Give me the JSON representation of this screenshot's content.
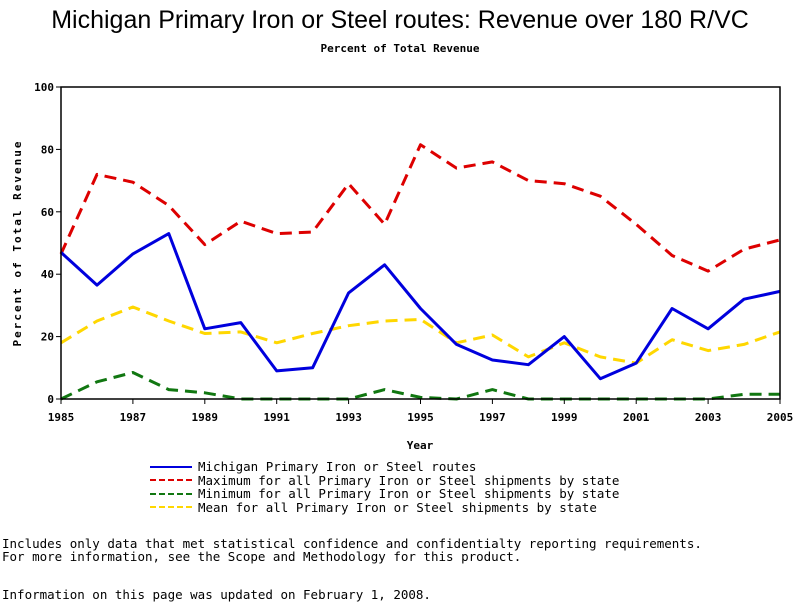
{
  "chart_data": {
    "type": "line",
    "title": "Michigan Primary Iron or Steel routes: Revenue over 180 R/VC",
    "subtitle": "Percent of Total Revenue",
    "xlabel": "Year",
    "ylabel": "Percent of Total Revenue",
    "xlim": [
      1985,
      2005
    ],
    "ylim": [
      0,
      100
    ],
    "x_ticks": [
      "1985",
      "1987",
      "1989",
      "1991",
      "1993",
      "1995",
      "1997",
      "1999",
      "2001",
      "2003",
      "2005"
    ],
    "y_ticks": [
      "0",
      "20",
      "40",
      "60",
      "80",
      "100"
    ],
    "grid": false,
    "legend_position": "bottom",
    "x": [
      1985,
      1986,
      1987,
      1988,
      1989,
      1990,
      1991,
      1992,
      1993,
      1994,
      1995,
      1996,
      1997,
      1998,
      1999,
      2000,
      2001,
      2002,
      2003,
      2004,
      2005
    ],
    "series": [
      {
        "name": "Michigan Primary Iron or Steel routes",
        "color": "#0000dd",
        "style": "solid",
        "values": [
          47,
          36.5,
          46.5,
          53,
          22.5,
          24.5,
          9,
          10,
          34,
          43,
          29,
          17.5,
          12.5,
          11,
          20,
          6.5,
          11.5,
          29,
          22.5,
          32,
          34.5
        ]
      },
      {
        "name": "Maximum for all Primary Iron or Steel shipments by state",
        "color": "#dd0000",
        "style": "dashed",
        "values": [
          46.5,
          72,
          69.5,
          62,
          49.5,
          57,
          53,
          53.5,
          69,
          56,
          81.5,
          74,
          76,
          70,
          69,
          65,
          56,
          46,
          41,
          48,
          51
        ]
      },
      {
        "name": "Minimum for all Primary Iron or Steel shipments by state",
        "color": "#117711",
        "style": "dashed",
        "values": [
          0,
          5.5,
          8.5,
          3,
          2,
          0,
          0,
          0,
          0,
          3,
          0.5,
          0,
          3,
          0,
          0,
          0,
          0,
          0,
          0,
          1.5,
          1.5
        ]
      },
      {
        "name": "Mean for all Primary Iron or Steel shipments by state",
        "color": "#ffd700",
        "style": "dashed",
        "values": [
          18,
          25,
          29.5,
          25,
          21,
          21.5,
          18,
          21,
          23.5,
          25,
          25.5,
          18,
          20.5,
          13.5,
          18,
          13.5,
          11.5,
          19,
          15.5,
          17.5,
          21.5
        ]
      }
    ]
  },
  "notes": {
    "line1": "Includes only data that met statistical confidence and confidentialty reporting requirements.",
    "line2": "For more information, see the Scope and Methodology for this product.",
    "updated": "Information on this page was updated on February 1, 2008."
  }
}
